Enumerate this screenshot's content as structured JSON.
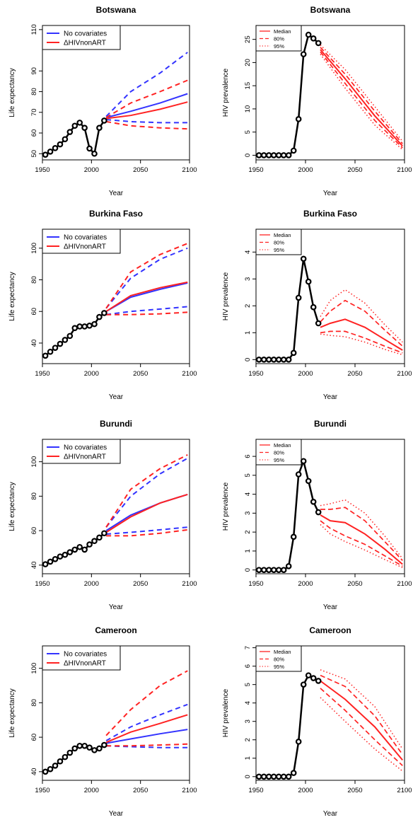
{
  "chart_data": [
    {
      "type": "line",
      "panel": "le",
      "title": "Botswana",
      "xlabel": "Year",
      "ylabel": "Life expectancy",
      "xlim": [
        1950,
        2100
      ],
      "ylim": [
        47,
        112
      ],
      "xticks": [
        1950,
        2000,
        2050,
        2100
      ],
      "yticks": [
        50,
        60,
        70,
        80,
        90,
        110
      ],
      "legend": [
        "No covariates",
        "ΔHIVnonART"
      ],
      "colors": {
        "nocov": "#3333ff",
        "hiv": "#ff2222",
        "obs": "#000000"
      },
      "observed": {
        "x": [
          1953,
          1958,
          1963,
          1968,
          1973,
          1978,
          1983,
          1988,
          1993,
          1998,
          2003,
          2008,
          2013
        ],
        "y": [
          49.5,
          51,
          52.7,
          54.5,
          57,
          60.5,
          63.5,
          65,
          62.5,
          52.5,
          50,
          62.5,
          66
        ]
      },
      "series": [
        {
          "name": "No covariates",
          "x": [
            2015,
            2040,
            2070,
            2098
          ],
          "median": [
            67.5,
            70.5,
            74.5,
            79
          ],
          "upper": [
            68,
            80,
            89,
            99
          ],
          "lower": [
            66.5,
            65.5,
            65,
            65
          ]
        },
        {
          "name": "ΔHIVnonART",
          "x": [
            2015,
            2040,
            2070,
            2098
          ],
          "median": [
            67,
            68.5,
            71.5,
            75
          ],
          "upper": [
            67.5,
            74.5,
            80,
            85.5
          ],
          "lower": [
            65.5,
            63.5,
            62.5,
            62
          ]
        }
      ]
    },
    {
      "type": "line",
      "panel": "hiv",
      "title": "Botswana",
      "xlabel": "Year",
      "ylabel": "HIV prevalence",
      "xlim": [
        1950,
        2100
      ],
      "ylim": [
        -1,
        28
      ],
      "xticks": [
        1950,
        2000,
        2050,
        2100
      ],
      "yticks": [
        0,
        5,
        10,
        15,
        20,
        25
      ],
      "legend": [
        "Median",
        "80%",
        "95%"
      ],
      "colors": {
        "proj": "#ff2222",
        "obs": "#000000"
      },
      "observed": {
        "x": [
          1953,
          1958,
          1963,
          1968,
          1973,
          1978,
          1983,
          1988,
          1993,
          1998,
          2003,
          2008,
          2013
        ],
        "y": [
          0,
          0,
          0,
          0,
          0,
          0,
          0,
          1,
          7.8,
          21.8,
          26,
          25.2,
          24.2
        ]
      },
      "projection": {
        "x": [
          2015,
          2040,
          2070,
          2098
        ],
        "median": [
          22.8,
          16.5,
          8.5,
          2
        ],
        "p80_upper": [
          23.3,
          17.5,
          9.5,
          2.5
        ],
        "p80_lower": [
          22.3,
          15.5,
          7.5,
          1.6
        ],
        "p95_upper": [
          23.8,
          18.5,
          10.5,
          3
        ],
        "p95_lower": [
          21.8,
          14.5,
          6.5,
          1.2
        ]
      }
    },
    {
      "type": "line",
      "panel": "le",
      "title": "Burkina Faso",
      "xlabel": "Year",
      "ylabel": "Life expectancy",
      "xlim": [
        1950,
        2100
      ],
      "ylim": [
        27,
        112
      ],
      "xticks": [
        1950,
        2000,
        2050,
        2100
      ],
      "yticks": [
        40,
        60,
        80,
        100
      ],
      "legend": [
        "No covariates",
        "ΔHIVnonART"
      ],
      "colors": {
        "nocov": "#3333ff",
        "hiv": "#ff2222",
        "obs": "#000000"
      },
      "observed": {
        "x": [
          1953,
          1958,
          1963,
          1968,
          1973,
          1978,
          1983,
          1988,
          1993,
          1998,
          2003,
          2008,
          2013
        ],
        "y": [
          32,
          34.5,
          37,
          39.5,
          42,
          44.5,
          49.5,
          50.5,
          50.5,
          51,
          52,
          56.5,
          59
        ]
      },
      "series": [
        {
          "name": "No covariates",
          "x": [
            2015,
            2040,
            2070,
            2098
          ],
          "median": [
            60,
            69,
            74,
            78
          ],
          "upper": [
            62,
            81,
            93,
            100
          ],
          "lower": [
            58,
            60,
            61.5,
            63
          ]
        },
        {
          "name": "ΔHIVnonART",
          "x": [
            2015,
            2040,
            2070,
            2098
          ],
          "median": [
            60,
            70,
            75,
            78.5
          ],
          "upper": [
            62,
            85,
            96,
            103
          ],
          "lower": [
            58,
            58,
            58.5,
            59.5
          ]
        }
      ]
    },
    {
      "type": "line",
      "panel": "hiv",
      "title": "Burkina Faso",
      "xlabel": "Year",
      "ylabel": "HIV prevalence",
      "xlim": [
        1950,
        2100
      ],
      "ylim": [
        -0.15,
        4.85
      ],
      "xticks": [
        1950,
        2000,
        2050,
        2100
      ],
      "yticks": [
        0,
        1,
        2,
        3,
        4
      ],
      "legend": [
        "Median",
        "80%",
        "95%"
      ],
      "colors": {
        "proj": "#ff2222",
        "obs": "#000000"
      },
      "observed": {
        "x": [
          1953,
          1958,
          1963,
          1968,
          1973,
          1978,
          1983,
          1988,
          1993,
          1998,
          2003,
          2008,
          2013
        ],
        "y": [
          0,
          0,
          0,
          0,
          0,
          0,
          0,
          0.25,
          2.3,
          3.75,
          2.9,
          1.95,
          1.35
        ]
      },
      "projection": {
        "x": [
          2015,
          2025,
          2040,
          2060,
          2080,
          2098
        ],
        "median": [
          1.2,
          1.35,
          1.5,
          1.2,
          0.75,
          0.35
        ],
        "p80_upper": [
          1.4,
          1.8,
          2.2,
          1.8,
          1.1,
          0.5
        ],
        "p80_lower": [
          1.0,
          1.05,
          1.05,
          0.8,
          0.5,
          0.25
        ],
        "p95_upper": [
          1.6,
          2.2,
          2.6,
          2.1,
          1.3,
          0.65
        ],
        "p95_lower": [
          0.95,
          0.9,
          0.85,
          0.65,
          0.38,
          0.18
        ]
      }
    },
    {
      "type": "line",
      "panel": "le",
      "title": "Burundi",
      "xlabel": "Year",
      "ylabel": "Life expectancy",
      "xlim": [
        1950,
        2100
      ],
      "ylim": [
        35,
        113
      ],
      "xticks": [
        1950,
        2000,
        2050,
        2100
      ],
      "yticks": [
        40,
        60,
        80,
        100
      ],
      "legend": [
        "No covariates",
        "ΔHIVnonART"
      ],
      "colors": {
        "nocov": "#3333ff",
        "hiv": "#ff2222",
        "obs": "#000000"
      },
      "observed": {
        "x": [
          1953,
          1958,
          1963,
          1968,
          1973,
          1978,
          1983,
          1988,
          1993,
          1998,
          2003,
          2008,
          2013
        ],
        "y": [
          40.5,
          42,
          43.5,
          45,
          46,
          47.5,
          49,
          50.5,
          49,
          52,
          54,
          56,
          58.5
        ]
      },
      "series": [
        {
          "name": "No covariates",
          "x": [
            2015,
            2040,
            2070,
            2098
          ],
          "median": [
            60,
            69,
            76,
            81
          ],
          "upper": [
            62,
            80,
            93,
            102
          ],
          "lower": [
            58,
            59,
            60.5,
            62
          ]
        },
        {
          "name": "ΔHIVnonART",
          "x": [
            2015,
            2040,
            2070,
            2098
          ],
          "median": [
            59,
            68,
            76,
            81
          ],
          "upper": [
            62,
            84,
            96,
            104
          ],
          "lower": [
            57,
            57,
            58.5,
            60.5
          ]
        }
      ]
    },
    {
      "type": "line",
      "panel": "hiv",
      "title": "Burundi",
      "xlabel": "Year",
      "ylabel": "HIV prevalence",
      "xlim": [
        1950,
        2100
      ],
      "ylim": [
        -0.2,
        6.9
      ],
      "xticks": [
        1950,
        2000,
        2050,
        2100
      ],
      "yticks": [
        0,
        1,
        2,
        3,
        4,
        5,
        6
      ],
      "legend": [
        "Median",
        "80%",
        "95%"
      ],
      "colors": {
        "proj": "#ff2222",
        "obs": "#000000"
      },
      "observed": {
        "x": [
          1953,
          1958,
          1963,
          1968,
          1973,
          1978,
          1983,
          1988,
          1993,
          1998,
          2003,
          2008,
          2013
        ],
        "y": [
          0,
          0,
          0,
          0,
          0,
          0,
          0.2,
          1.75,
          5.05,
          5.75,
          4.7,
          3.6,
          3.05
        ]
      },
      "projection": {
        "x": [
          2015,
          2025,
          2040,
          2060,
          2080,
          2098
        ],
        "median": [
          2.9,
          2.6,
          2.5,
          1.9,
          1.1,
          0.3
        ],
        "p80_upper": [
          3.2,
          3.2,
          3.3,
          2.6,
          1.5,
          0.5
        ],
        "p80_lower": [
          2.6,
          2.2,
          1.8,
          1.35,
          0.75,
          0.2
        ],
        "p95_upper": [
          3.4,
          3.5,
          3.7,
          3.0,
          1.8,
          0.6
        ],
        "p95_lower": [
          2.4,
          1.9,
          1.5,
          1.05,
          0.55,
          0.12
        ]
      }
    },
    {
      "type": "line",
      "panel": "le",
      "title": "Cameroon",
      "xlabel": "Year",
      "ylabel": "Life expectancy",
      "xlim": [
        1950,
        2100
      ],
      "ylim": [
        35,
        113
      ],
      "xticks": [
        1950,
        2000,
        2050,
        2100
      ],
      "yticks": [
        40,
        60,
        80,
        100
      ],
      "legend": [
        "No covariates",
        "ΔHIVnonART"
      ],
      "colors": {
        "nocov": "#3333ff",
        "hiv": "#ff2222",
        "obs": "#000000"
      },
      "observed": {
        "x": [
          1953,
          1958,
          1963,
          1968,
          1973,
          1978,
          1983,
          1988,
          1993,
          1998,
          2003,
          2008,
          2013
        ],
        "y": [
          40,
          41.5,
          43.5,
          46,
          48.5,
          51,
          53.5,
          55,
          55,
          54,
          52.5,
          53.5,
          55.5
        ]
      },
      "series": [
        {
          "name": "No covariates",
          "x": [
            2015,
            2040,
            2070,
            2098
          ],
          "median": [
            56.5,
            59,
            62,
            64.5
          ],
          "upper": [
            58,
            66,
            73,
            79
          ],
          "lower": [
            55,
            54.5,
            54,
            54
          ]
        },
        {
          "name": "ΔHIVnonART",
          "x": [
            2015,
            2040,
            2070,
            2098
          ],
          "median": [
            57,
            63,
            68,
            73
          ],
          "upper": [
            61,
            76,
            90,
            98.5
          ],
          "lower": [
            55,
            55,
            55.5,
            56
          ]
        }
      ]
    },
    {
      "type": "line",
      "panel": "hiv",
      "title": "Cameroon",
      "xlabel": "Year",
      "ylabel": "HIV prevalence",
      "xlim": [
        1950,
        2100
      ],
      "ylim": [
        -0.2,
        7.1
      ],
      "xticks": [
        1950,
        2000,
        2050,
        2100
      ],
      "yticks": [
        0,
        1,
        2,
        3,
        4,
        5,
        6,
        7
      ],
      "legend": [
        "Median",
        "80%",
        "95%"
      ],
      "colors": {
        "proj": "#ff2222",
        "obs": "#000000"
      },
      "observed": {
        "x": [
          1953,
          1958,
          1963,
          1968,
          1973,
          1978,
          1983,
          1988,
          1993,
          1998,
          2003,
          2008,
          2013
        ],
        "y": [
          0,
          0,
          0,
          0,
          0,
          0,
          0,
          0.2,
          1.9,
          5.0,
          5.5,
          5.35,
          5.2
        ]
      },
      "projection": {
        "x": [
          2015,
          2040,
          2070,
          2098
        ],
        "median": [
          5.2,
          4.2,
          2.7,
          0.9
        ],
        "p80_upper": [
          5.5,
          4.9,
          3.3,
          1.2
        ],
        "p80_lower": [
          4.8,
          3.6,
          2.0,
          0.6
        ],
        "p95_upper": [
          5.8,
          5.3,
          3.8,
          1.5
        ],
        "p95_lower": [
          4.3,
          3.0,
          1.5,
          0.3
        ]
      }
    }
  ]
}
